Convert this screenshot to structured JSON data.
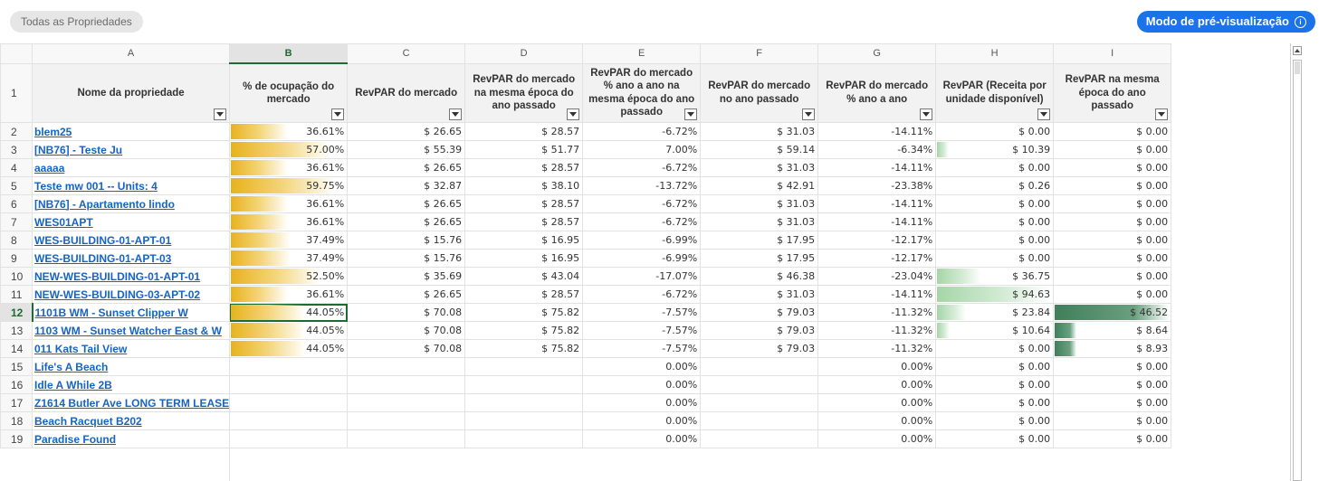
{
  "topbar": {
    "filter_label": "Todas as Propriedades",
    "preview_label": "Modo de pré-visualização",
    "info_icon": "i"
  },
  "grid": {
    "column_letters": [
      "A",
      "B",
      "C",
      "D",
      "E",
      "F",
      "G",
      "H",
      "I"
    ],
    "selected_column": "B",
    "selected_row": "12",
    "header_row_number": "1",
    "headers": [
      "Nome da propriedade",
      "% de ocupação do mercado",
      "RevPAR do mercado",
      "RevPAR do mercado na mesma época do ano passado",
      "RevPAR do mercado % ano a ano na mesma época do ano passado",
      "RevPAR do mercado no ano passado",
      "RevPAR do mercado % ano a ano",
      "RevPAR (Receita por unidade disponível)",
      "RevPAR na mesma época do ano passado"
    ],
    "rows": [
      {
        "n": "2",
        "name": "blem25",
        "b": "36.61%",
        "c": "$ 26.65",
        "d": "$ 28.57",
        "e": "-6.72%",
        "f": "$ 31.03",
        "g": "-14.11%",
        "h": "$ 0.00",
        "i": "$ 0.00",
        "bv": 0.5,
        "hv": 0,
        "iv": 0
      },
      {
        "n": "3",
        "name": "[NB76] - Teste Ju",
        "b": "57.00%",
        "c": "$ 55.39",
        "d": "$ 51.77",
        "e": "7.00%",
        "f": "$ 59.14",
        "g": "-6.34%",
        "h": "$ 10.39",
        "i": "$ 0.00",
        "bv": 0.87,
        "hv": 0.1,
        "iv": 0
      },
      {
        "n": "4",
        "name": "aaaaa",
        "b": "36.61%",
        "c": "$ 26.65",
        "d": "$ 28.57",
        "e": "-6.72%",
        "f": "$ 31.03",
        "g": "-14.11%",
        "h": "$ 0.00",
        "i": "$ 0.00",
        "bv": 0.5,
        "hv": 0,
        "iv": 0
      },
      {
        "n": "5",
        "name": "Teste mw 001 -- Units: 4",
        "b": "59.75%",
        "c": "$ 32.87",
        "d": "$ 38.10",
        "e": "-13.72%",
        "f": "$ 42.91",
        "g": "-23.38%",
        "h": "$ 0.26",
        "i": "$ 0.00",
        "bv": 0.92,
        "hv": 0,
        "iv": 0
      },
      {
        "n": "6",
        "name": "[NB76] - Apartamento lindo",
        "b": "36.61%",
        "c": "$ 26.65",
        "d": "$ 28.57",
        "e": "-6.72%",
        "f": "$ 31.03",
        "g": "-14.11%",
        "h": "$ 0.00",
        "i": "$ 0.00",
        "bv": 0.5,
        "hv": 0,
        "iv": 0
      },
      {
        "n": "7",
        "name": "WES01APT",
        "b": "36.61%",
        "c": "$ 26.65",
        "d": "$ 28.57",
        "e": "-6.72%",
        "f": "$ 31.03",
        "g": "-14.11%",
        "h": "$ 0.00",
        "i": "$ 0.00",
        "bv": 0.5,
        "hv": 0,
        "iv": 0
      },
      {
        "n": "8",
        "name": "WES-BUILDING-01-APT-01",
        "b": "37.49%",
        "c": "$ 15.76",
        "d": "$ 16.95",
        "e": "-6.99%",
        "f": "$ 17.95",
        "g": "-12.17%",
        "h": "$ 0.00",
        "i": "$ 0.00",
        "bv": 0.52,
        "hv": 0,
        "iv": 0
      },
      {
        "n": "9",
        "name": "WES-BUILDING-01-APT-03",
        "b": "37.49%",
        "c": "$ 15.76",
        "d": "$ 16.95",
        "e": "-6.99%",
        "f": "$ 17.95",
        "g": "-12.17%",
        "h": "$ 0.00",
        "i": "$ 0.00",
        "bv": 0.52,
        "hv": 0,
        "iv": 0
      },
      {
        "n": "10",
        "name": "NEW-WES-BUILDING-01-APT-01",
        "b": "52.50%",
        "c": "$ 35.69",
        "d": "$ 43.04",
        "e": "-17.07%",
        "f": "$ 46.38",
        "g": "-23.04%",
        "h": "$ 36.75",
        "i": "$ 0.00",
        "bv": 0.78,
        "hv": 0.39,
        "iv": 0
      },
      {
        "n": "11",
        "name": "NEW-WES-BUILDING-03-APT-02",
        "b": "36.61%",
        "c": "$ 26.65",
        "d": "$ 28.57",
        "e": "-6.72%",
        "f": "$ 31.03",
        "g": "-14.11%",
        "h": "$ 94.63",
        "i": "$ 0.00",
        "bv": 0.5,
        "hv": 1.0,
        "iv": 0
      },
      {
        "n": "12",
        "name": "1101B WM - Sunset Clipper W",
        "b": "44.05%",
        "c": "$ 70.08",
        "d": "$ 75.82",
        "e": "-7.57%",
        "f": "$ 79.03",
        "g": "-11.32%",
        "h": "$ 23.84",
        "i": "$ 46.52",
        "bv": 0.65,
        "hv": 0.25,
        "iv": 1.0
      },
      {
        "n": "13",
        "name": "1103 WM - Sunset Watcher East & W",
        "b": "44.05%",
        "c": "$ 70.08",
        "d": "$ 75.82",
        "e": "-7.57%",
        "f": "$ 79.03",
        "g": "-11.32%",
        "h": "$ 10.64",
        "i": "$ 8.64",
        "bv": 0.65,
        "hv": 0.11,
        "iv": 0.19
      },
      {
        "n": "14",
        "name": "011 Kats Tail View",
        "b": "44.05%",
        "c": "$ 70.08",
        "d": "$ 75.82",
        "e": "-7.57%",
        "f": "$ 79.03",
        "g": "-11.32%",
        "h": "$ 0.00",
        "i": "$ 8.93",
        "bv": 0.65,
        "hv": 0,
        "iv": 0.19
      },
      {
        "n": "15",
        "name": "Life's A Beach",
        "b": "",
        "c": "",
        "d": "",
        "e": "0.00%",
        "f": "",
        "g": "0.00%",
        "h": "$ 0.00",
        "i": "$ 0.00",
        "bv": 0,
        "hv": 0,
        "iv": 0
      },
      {
        "n": "16",
        "name": "Idle A While 2B",
        "b": "",
        "c": "",
        "d": "",
        "e": "0.00%",
        "f": "",
        "g": "0.00%",
        "h": "$ 0.00",
        "i": "$ 0.00",
        "bv": 0,
        "hv": 0,
        "iv": 0
      },
      {
        "n": "17",
        "name": "Z1614 Butler Ave LONG TERM LEASE",
        "b": "",
        "c": "",
        "d": "",
        "e": "0.00%",
        "f": "",
        "g": "0.00%",
        "h": "$ 0.00",
        "i": "$ 0.00",
        "bv": 0,
        "hv": 0,
        "iv": 0
      },
      {
        "n": "18",
        "name": "Beach Racquet B202",
        "b": "",
        "c": "",
        "d": "",
        "e": "0.00%",
        "f": "",
        "g": "0.00%",
        "h": "$ 0.00",
        "i": "$ 0.00",
        "bv": 0,
        "hv": 0,
        "iv": 0
      },
      {
        "n": "19",
        "name": "Paradise Found",
        "b": "",
        "c": "",
        "d": "",
        "e": "0.00%",
        "f": "",
        "g": "0.00%",
        "h": "$ 0.00",
        "i": "$ 0.00",
        "bv": 0,
        "hv": 0,
        "iv": 0
      }
    ]
  },
  "icons": {
    "filter": "filter-dropdown-icon",
    "scroll_up": "scroll-up-arrow-icon"
  }
}
